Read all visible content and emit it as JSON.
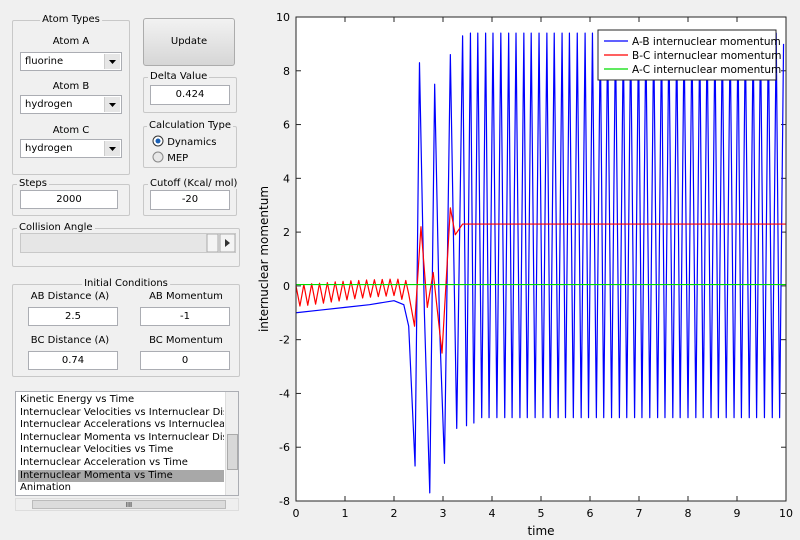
{
  "ui": {
    "atom_types": {
      "title": "Atom Types",
      "atoms": [
        {
          "label": "Atom A",
          "value": "fluorine"
        },
        {
          "label": "Atom B",
          "value": "hydrogen"
        },
        {
          "label": "Atom C",
          "value": "hydrogen"
        }
      ]
    },
    "update_button": "Update",
    "delta_value": {
      "label": "Delta Value",
      "value": "0.424"
    },
    "calculation_type": {
      "title": "Calculation Type",
      "options": [
        "Dynamics",
        "MEP"
      ]
    },
    "steps": {
      "label": "Steps",
      "value": "2000"
    },
    "cutoff": {
      "label": "Cutoff (Kcal/ mol)",
      "value": "-20"
    },
    "collision_angle": {
      "label": "Collision Angle"
    },
    "initial_conditions": {
      "title": "Initial Conditions",
      "fields": [
        {
          "label": "AB Distance (A)",
          "value": "2.5"
        },
        {
          "label": "AB Momentum",
          "value": "-1"
        },
        {
          "label": "BC Distance (A)",
          "value": "0.74"
        },
        {
          "label": "BC Momentum",
          "value": "0"
        }
      ]
    },
    "plot_list": {
      "items": [
        "Kinetic Energy vs Time",
        "Internuclear Velocities vs Internuclear Distance",
        "Internuclear Accelerations vs Internuclear Dista",
        "Internuclear Momenta vs Internuclear Distance",
        "Internuclear Velocities vs Time",
        "Internuclear Acceleration vs Time",
        "Internuclear Momenta vs Time",
        "Animation"
      ],
      "scroll_thumb": "III"
    }
  },
  "chart_data": {
    "type": "line",
    "x_label": "time",
    "y_label": "internuclear momentum",
    "xlim": [
      0,
      10
    ],
    "xticks": [
      0,
      1,
      2,
      3,
      4,
      5,
      6,
      7,
      8,
      9,
      10
    ],
    "ylim": [
      -8,
      10
    ],
    "yticks": [
      -8,
      -6,
      -4,
      -2,
      0,
      2,
      4,
      6,
      8,
      10
    ],
    "legend": "upper right",
    "grid": false,
    "series": [
      {
        "name": "A-B internuclear momentum",
        "color": "#0000ff",
        "x": [
          0,
          0.5,
          1,
          1.5,
          2,
          2.2,
          2.3,
          2.43,
          2.52,
          2.62,
          2.73,
          2.83,
          2.93,
          3.03,
          3.15,
          3.28,
          3.4,
          3.48,
          3.56,
          3.63,
          3.71,
          3.79,
          3.87,
          3.94,
          4.02,
          4.1,
          4.18,
          4.26,
          4.34,
          4.41,
          4.49,
          4.57,
          4.65,
          4.72,
          4.8,
          4.88,
          4.96,
          5.04,
          5.12,
          5.19,
          5.27,
          5.35,
          5.43,
          5.5,
          5.58,
          5.66,
          5.74,
          5.82,
          5.9,
          5.97,
          6.05,
          6.13,
          6.21,
          6.28,
          6.36,
          6.44,
          6.52,
          6.6,
          6.68,
          6.75,
          6.83,
          6.91,
          6.99,
          7.06,
          7.14,
          7.22,
          7.3,
          7.38,
          7.46,
          7.53,
          7.61,
          7.69,
          7.77,
          7.84,
          7.92,
          8.0,
          8.08,
          8.16,
          8.24,
          8.31,
          8.39,
          8.47,
          8.55,
          8.62,
          8.7,
          8.78,
          8.86,
          8.94,
          9.02,
          9.09,
          9.17,
          9.25,
          9.33,
          9.4,
          9.48,
          9.56,
          9.64,
          9.72,
          9.8,
          9.87,
          9.95
        ],
        "values": [
          -1,
          -0.9,
          -0.8,
          -0.7,
          -0.55,
          -0.7,
          -1.5,
          -6.7,
          8.3,
          -1,
          -7.7,
          7.5,
          -1.5,
          -6.6,
          8.6,
          -5.3,
          9.3,
          -5.2,
          9.4,
          -5.1,
          9.4,
          -4.9,
          9.4,
          -4.9,
          9.4,
          -4.9,
          9.4,
          -4.9,
          9.4,
          -4.9,
          9.4,
          -4.9,
          9.4,
          -4.9,
          9.4,
          -4.9,
          9.4,
          -4.9,
          9.4,
          -4.9,
          9.4,
          -4.9,
          9.4,
          -4.9,
          9.4,
          -4.9,
          9.4,
          -4.9,
          9.4,
          -4.9,
          9.4,
          -4.9,
          9.4,
          -4.9,
          9.4,
          -4.9,
          9.4,
          -4.9,
          9.4,
          -4.9,
          9.4,
          -4.9,
          9.4,
          -4.9,
          9.4,
          -4.9,
          9.4,
          -4.9,
          9.4,
          -4.9,
          9.4,
          -4.9,
          9.4,
          -4.9,
          9.4,
          -4.9,
          9.4,
          -4.9,
          9.4,
          -4.9,
          9.4,
          -4.9,
          9.4,
          -4.9,
          9.4,
          -4.9,
          9.4,
          -4.9,
          9.4,
          -4.9,
          9.4,
          -4.9,
          9.4,
          -4.9,
          9.4,
          -4.9,
          9.4,
          -4.9,
          9.4,
          -4.9,
          9.0
        ]
      },
      {
        "name": "B-C internuclear momentum",
        "color": "#ff0000",
        "x": [
          0,
          0.08,
          0.16,
          0.24,
          0.32,
          0.4,
          0.48,
          0.56,
          0.64,
          0.72,
          0.8,
          0.88,
          0.96,
          1.04,
          1.12,
          1.2,
          1.28,
          1.36,
          1.44,
          1.52,
          1.6,
          1.68,
          1.76,
          1.84,
          1.92,
          2.0,
          2.08,
          2.16,
          2.24,
          2.3,
          2.42,
          2.55,
          2.68,
          2.8,
          2.98,
          3.15,
          3.25,
          3.4,
          10
        ],
        "values": [
          0,
          -0.75,
          0.05,
          -0.72,
          0.08,
          -0.68,
          0.1,
          -0.64,
          0.12,
          -0.6,
          0.15,
          -0.56,
          0.17,
          -0.52,
          0.19,
          -0.48,
          0.2,
          -0.45,
          0.22,
          -0.42,
          0.23,
          -0.4,
          0.24,
          -0.38,
          0.25,
          -0.36,
          0.25,
          -0.5,
          0.2,
          -0.3,
          -1.5,
          2.2,
          -0.8,
          0.5,
          -2.5,
          2.9,
          1.9,
          2.3,
          2.3
        ]
      },
      {
        "name": "A-C internuclear momentum",
        "color": "#00dd00",
        "x": [
          0,
          10
        ],
        "values": [
          0.05,
          0.05
        ]
      }
    ]
  }
}
